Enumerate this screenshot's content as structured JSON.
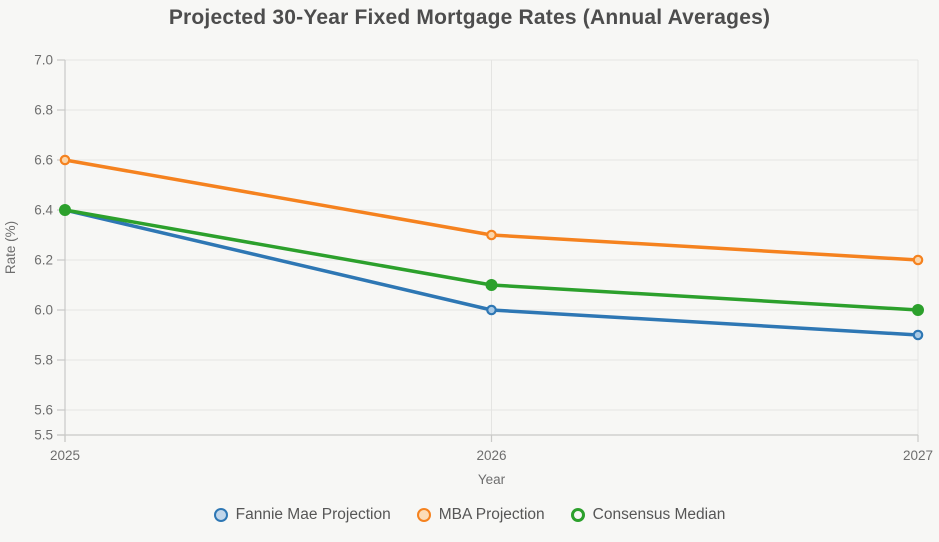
{
  "title": "Projected 30-Year Fixed Mortgage Rates (Annual Averages)",
  "colors": {
    "background": "#f7f7f5",
    "grid": "#e4e4e2",
    "axis": "#c9c9c7",
    "tick_text": "#6e6e6e",
    "axis_title_text": "#6e6e6e",
    "title_text": "#4d4d4d",
    "legend_text": "#565656"
  },
  "chart_data": {
    "type": "line",
    "title": "Projected 30-Year Fixed Mortgage Rates (Annual Averages)",
    "x": [
      "2025",
      "2026",
      "2027"
    ],
    "xlabel": "Year",
    "ylabel": "Rate (%)",
    "ylim": [
      5.5,
      7.0
    ],
    "yticks": [
      5.5,
      5.6,
      5.8,
      6.0,
      6.2,
      6.4,
      6.6,
      6.8,
      7.0
    ],
    "ytick_labels": [
      "5.5",
      "5.6",
      "5.8",
      "6.0",
      "6.2",
      "6.4",
      "6.6",
      "6.8",
      "7.0"
    ],
    "grid": true,
    "legend_position": "bottom",
    "series": [
      {
        "name": "Fannie Mae Projection",
        "values": [
          6.4,
          6.0,
          5.9
        ],
        "color": "#2e77b4",
        "marker": "open",
        "marker_fill": "#a9c9e4",
        "legend_fill": "#c1d6ea",
        "legend_border_width": 2
      },
      {
        "name": "MBA Projection",
        "values": [
          6.6,
          6.3,
          6.2
        ],
        "color": "#f5821f",
        "marker": "open",
        "marker_fill": "#fbd5a9",
        "legend_fill": "#fcdcb6",
        "legend_border_width": 2
      },
      {
        "name": "Consensus Median",
        "values": [
          6.4,
          6.1,
          6.0
        ],
        "color": "#2ca02c",
        "marker": "filled",
        "marker_fill": "#2ca02c",
        "legend_fill": "transparent",
        "legend_border_width": 3.5
      }
    ]
  }
}
